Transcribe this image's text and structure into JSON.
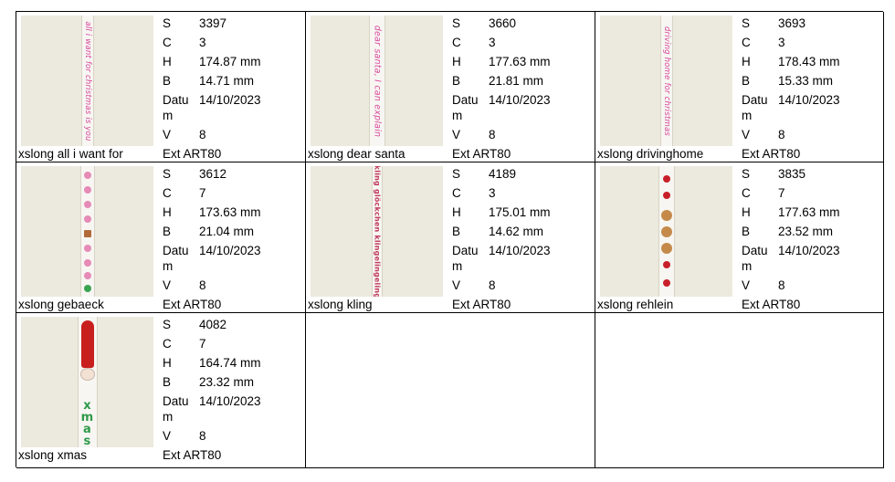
{
  "labels": {
    "s": "S",
    "c": "C",
    "h": "H",
    "b": "B",
    "datum_line1": "Datu",
    "datum_line2": "m",
    "v": "V",
    "ext": "Ext"
  },
  "items": [
    {
      "name": "xslong all i want for",
      "s": "3397",
      "c": "3",
      "h": "174.87 mm",
      "b": "14.71 mm",
      "datum": "14/10/2023",
      "v": "8",
      "ext": "ART80",
      "strip_text": "all i want for christmas is you",
      "strip_color": "#d9489b"
    },
    {
      "name": "xslong dear santa",
      "s": "3660",
      "c": "3",
      "h": "177.63 mm",
      "b": "21.81 mm",
      "datum": "14/10/2023",
      "v": "8",
      "ext": "ART80",
      "strip_text": "dear santa, I can explain",
      "strip_color": "#d9489b"
    },
    {
      "name": "xslong drivinghome",
      "s": "3693",
      "c": "3",
      "h": "178.43 mm",
      "b": "15.33 mm",
      "datum": "14/10/2023",
      "v": "8",
      "ext": "ART80",
      "strip_text": "driving home for christmas",
      "strip_color": "#d9489b"
    },
    {
      "name": "xslong gebaeck",
      "s": "3612",
      "c": "7",
      "h": "173.63 mm",
      "b": "21.04 mm",
      "datum": "14/10/2023",
      "v": "8",
      "ext": "ART80",
      "strip_text": "",
      "strip_color": "#d9489b"
    },
    {
      "name": "xslong kling",
      "s": "4189",
      "c": "3",
      "h": "175.01 mm",
      "b": "14.62 mm",
      "datum": "14/10/2023",
      "v": "8",
      "ext": "ART80",
      "strip_text": "kling glöckchen klingelingeling",
      "strip_color": "#c03a5c"
    },
    {
      "name": "xslong rehlein",
      "s": "3835",
      "c": "7",
      "h": "177.63 mm",
      "b": "23.52 mm",
      "datum": "14/10/2023",
      "v": "8",
      "ext": "ART80",
      "strip_text": "",
      "strip_color": "#c8202a"
    },
    {
      "name": "xslong xmas",
      "s": "4082",
      "c": "7",
      "h": "164.74 mm",
      "b": "23.32 mm",
      "datum": "14/10/2023",
      "v": "8",
      "ext": "ART80",
      "strip_text": "xmas",
      "strip_color": "#2f9a4a"
    }
  ]
}
